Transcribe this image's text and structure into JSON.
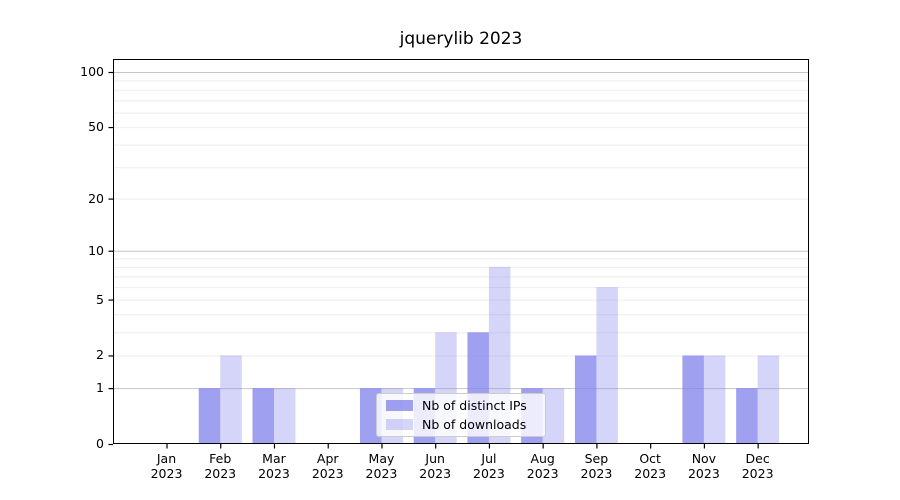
{
  "chart_data": {
    "type": "bar",
    "title": "jquerylib 2023",
    "xlabel": "",
    "ylabel": "",
    "scale": "log10(1+y)",
    "grid": "on",
    "legend_position": "lower center",
    "categories": [
      "Jan",
      "Feb",
      "Mar",
      "Apr",
      "May",
      "Jun",
      "Jul",
      "Aug",
      "Sep",
      "Oct",
      "Nov",
      "Dec"
    ],
    "category_year": [
      "2023",
      "2023",
      "2023",
      "2023",
      "2023",
      "2023",
      "2023",
      "2023",
      "2023",
      "2023",
      "2023",
      "2023"
    ],
    "series": [
      {
        "name": "Nb of distinct IPs",
        "color": "rgba(128,128,236,0.75)",
        "color_hex_on_white": "#a0a0f0",
        "values": [
          0,
          1,
          1,
          0,
          1,
          1,
          3,
          1,
          2,
          0,
          2,
          1
        ]
      },
      {
        "name": "Nb of downloads",
        "color": "rgba(128,128,236,0.33)",
        "color_hex_on_white": "#d5d5f9",
        "values": [
          0,
          2,
          1,
          0,
          1,
          3,
          8,
          1,
          6,
          0,
          2,
          2
        ]
      }
    ],
    "yticks": [
      0,
      1,
      2,
      5,
      10,
      20,
      50,
      100
    ],
    "ytick_labels": [
      "0",
      "1",
      "2",
      "5",
      "10",
      "20",
      "50",
      "100"
    ],
    "minor_gridlines": [
      3,
      4,
      6,
      7,
      8,
      9,
      30,
      40,
      60,
      70,
      80,
      90
    ],
    "major_dark_gridlines": [
      1,
      10,
      100
    ],
    "ylim": [
      0,
      118
    ],
    "colors": {
      "grid_light": "#ededed",
      "grid_dark": "#c6c6c6",
      "spine": "#000000",
      "legend_border": "#cccccc",
      "legend_bg": "rgba(255,255,255,0.8)"
    }
  }
}
